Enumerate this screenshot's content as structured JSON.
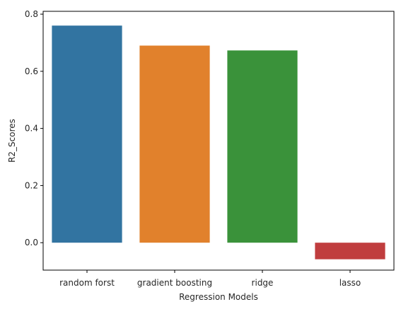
{
  "chart_data": {
    "type": "bar",
    "title": "",
    "xlabel": "Regression Models",
    "ylabel": "R2_Scores",
    "categories": [
      "random forst",
      "gradient boosting",
      "ridge",
      "lasso"
    ],
    "values": [
      0.76,
      0.69,
      0.673,
      -0.058
    ],
    "colors": [
      "#3274a1",
      "#e1812c",
      "#3a923a",
      "#c03d3e"
    ],
    "ylim": [
      -0.096,
      0.81
    ],
    "yticks": [
      0.0,
      0.2,
      0.4,
      0.6,
      0.8
    ],
    "ytick_labels": [
      "0.0",
      "0.2",
      "0.4",
      "0.6",
      "0.8"
    ],
    "grid": false,
    "legend": "none"
  }
}
